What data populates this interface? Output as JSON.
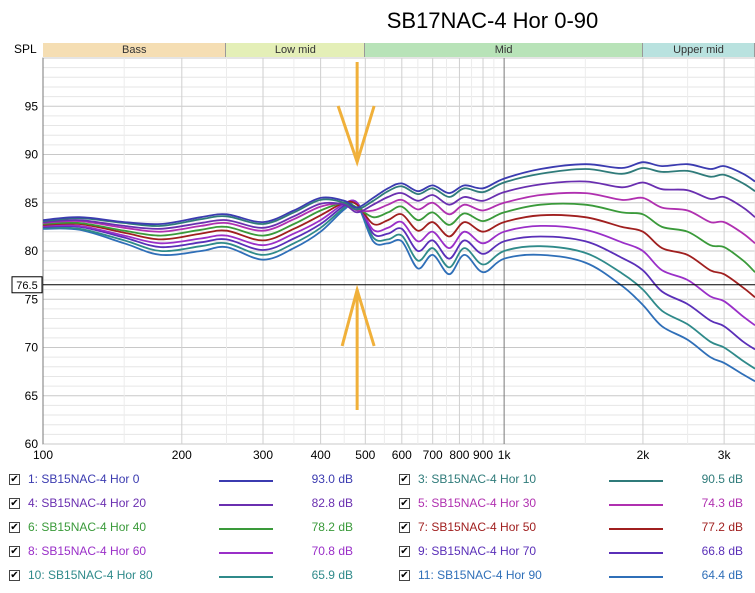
{
  "title": "SB17NAC-4 Hor 0-90",
  "spl_label": "SPL",
  "cursor_value": "76.5",
  "bands": [
    {
      "label": "Bass",
      "color": "#f5deb3",
      "from": 100,
      "to": 250
    },
    {
      "label": "Low mid",
      "color": "#e4efb7",
      "from": 250,
      "to": 500
    },
    {
      "label": "Mid",
      "color": "#b8e3b8",
      "from": 500,
      "to": 2000
    },
    {
      "label": "Upper mid",
      "color": "#b9e2df",
      "from": 2000,
      "to": 4000
    }
  ],
  "legend": [
    {
      "label": "1: SB15NAC-4 Hor 0",
      "value": "93.0 dB",
      "color": "#3b3bb0"
    },
    {
      "label": "3: SB15NAC-4 Hor 10",
      "value": "90.5 dB",
      "color": "#2f7b7a"
    },
    {
      "label": "4: SB15NAC-4 Hor 20",
      "value": "82.8 dB",
      "color": "#6a2fb0"
    },
    {
      "label": "5: SB15NAC-4 Hor 30",
      "value": "74.3 dB",
      "color": "#b030b0"
    },
    {
      "label": "6: SB15NAC-4 Hor 40",
      "value": "78.2 dB",
      "color": "#3a9a3a"
    },
    {
      "label": "7: SB15NAC-4 Hor 50",
      "value": "77.2 dB",
      "color": "#a01f1f"
    },
    {
      "label": "8: SB15NAC-4 Hor 60",
      "value": "70.8 dB",
      "color": "#9a2fc8"
    },
    {
      "label": "9: SB15NAC-4 Hor 70",
      "value": "66.8 dB",
      "color": "#5a2fb8"
    },
    {
      "label": "10: SB15NAC-4 Hor 80",
      "value": "65.9 dB",
      "color": "#2f8a8a"
    },
    {
      "label": "11: SB15NAC-4 Hor 90",
      "value": "64.4 dB",
      "color": "#2f6fb8"
    }
  ],
  "chart_data": {
    "type": "line",
    "title": "SB17NAC-4 Hor 0-90",
    "ylabel": "SPL",
    "xlabel": "",
    "x_scale": "log",
    "xlim": [
      100,
      3500
    ],
    "ylim": [
      60,
      100
    ],
    "grid": true,
    "x_tick_labels": [
      "100",
      "200",
      "300",
      "400",
      "500",
      "600",
      "700",
      "800",
      "900",
      "1k",
      "2k",
      "3k"
    ],
    "x_tick_values": [
      100,
      200,
      300,
      400,
      500,
      600,
      700,
      800,
      900,
      1000,
      2000,
      3000
    ],
    "y_tick_labels": [
      "60",
      "65",
      "70",
      "75",
      "80",
      "85",
      "90",
      "95"
    ],
    "y_tick_values": [
      60,
      65,
      70,
      75,
      80,
      85,
      90,
      95
    ],
    "cursor_y": 76.5,
    "x": [
      100,
      120,
      150,
      180,
      220,
      250,
      300,
      350,
      400,
      450,
      480,
      520,
      560,
      600,
      650,
      700,
      760,
      820,
      900,
      1000,
      1200,
      1500,
      1800,
      2000,
      2200,
      2500,
      2800,
      3000,
      3300,
      3500
    ],
    "series": [
      {
        "name": "1: SB15NAC-4 Hor 0",
        "values": [
          83.2,
          83.5,
          83.0,
          82.8,
          83.5,
          83.8,
          83.0,
          84.2,
          85.5,
          85.2,
          84.5,
          85.5,
          86.5,
          87.0,
          86.2,
          86.8,
          86.0,
          86.8,
          86.5,
          87.5,
          88.5,
          89.0,
          88.6,
          89.2,
          88.8,
          89.0,
          88.5,
          88.8,
          88.0,
          87.2
        ]
      },
      {
        "name": "3: SB15NAC-4 Hor 10",
        "values": [
          83.1,
          83.4,
          82.9,
          82.6,
          83.3,
          83.6,
          82.8,
          84.0,
          85.3,
          85.0,
          84.3,
          85.2,
          86.2,
          86.7,
          85.9,
          86.5,
          85.6,
          86.5,
          86.1,
          87.1,
          88.0,
          88.5,
          88.0,
          88.6,
          88.2,
          88.3,
          87.7,
          87.9,
          87.0,
          86.2
        ]
      },
      {
        "name": "4: SB15NAC-4 Hor 20",
        "values": [
          83.0,
          83.2,
          82.6,
          82.3,
          82.9,
          83.2,
          82.4,
          83.6,
          84.9,
          84.8,
          84.0,
          84.8,
          85.6,
          86.0,
          85.2,
          85.8,
          84.8,
          85.6,
          85.2,
          86.1,
          86.9,
          87.2,
          86.6,
          87.1,
          86.4,
          86.3,
          85.4,
          85.6,
          84.5,
          83.5
        ]
      },
      {
        "name": "5: SB15NAC-4 Hor 30",
        "values": [
          82.9,
          83.1,
          82.4,
          82.0,
          82.6,
          82.9,
          82.1,
          83.3,
          84.6,
          84.9,
          84.2,
          84.2,
          84.8,
          85.3,
          84.3,
          85.0,
          83.8,
          84.8,
          84.2,
          85.0,
          85.8,
          86.0,
          85.3,
          85.5,
          84.5,
          84.2,
          83.0,
          83.0,
          81.8,
          80.8
        ]
      },
      {
        "name": "6: SB15NAC-4 Hor 40",
        "values": [
          82.8,
          82.9,
          82.1,
          81.6,
          82.2,
          82.5,
          81.6,
          82.8,
          84.2,
          85.0,
          84.5,
          83.5,
          84.0,
          84.6,
          83.2,
          84.0,
          82.7,
          83.9,
          83.1,
          84.0,
          84.8,
          84.8,
          84.0,
          83.8,
          82.5,
          82.0,
          80.6,
          80.4,
          79.0,
          77.8
        ]
      },
      {
        "name": "7: SB15NAC-4 Hor 50",
        "values": [
          82.7,
          82.8,
          81.9,
          81.2,
          81.8,
          82.1,
          81.1,
          82.3,
          83.7,
          85.0,
          84.8,
          82.8,
          83.2,
          83.8,
          82.1,
          83.0,
          81.5,
          83.0,
          82.0,
          83.0,
          83.7,
          83.5,
          82.5,
          82.0,
          80.3,
          79.6,
          78.0,
          77.6,
          76.2,
          75.2
        ]
      },
      {
        "name": "8: SB15NAC-4 Hor 60",
        "values": [
          82.6,
          82.6,
          81.6,
          80.8,
          81.3,
          81.6,
          80.6,
          81.8,
          83.2,
          84.9,
          85.0,
          82.2,
          82.4,
          83.0,
          81.0,
          82.0,
          80.3,
          82.0,
          80.8,
          82.0,
          82.6,
          82.2,
          80.9,
          80.0,
          78.0,
          77.0,
          75.3,
          74.8,
          73.2,
          72.3
        ]
      },
      {
        "name": "9: SB15NAC-4 Hor 70",
        "values": [
          82.5,
          82.5,
          81.4,
          80.4,
          80.9,
          81.2,
          80.1,
          81.3,
          82.8,
          84.7,
          85.0,
          81.8,
          81.8,
          82.3,
          80.0,
          81.1,
          79.2,
          81.1,
          79.7,
          81.0,
          81.5,
          81.0,
          79.3,
          78.0,
          75.8,
          74.5,
          72.8,
          72.2,
          70.6,
          69.8
        ]
      },
      {
        "name": "10: SB15NAC-4 Hor 80",
        "values": [
          82.4,
          82.3,
          81.1,
          80.0,
          80.5,
          80.8,
          79.6,
          80.8,
          82.4,
          84.5,
          85.0,
          81.4,
          81.2,
          81.6,
          79.0,
          80.3,
          78.3,
          80.3,
          78.6,
          80.0,
          80.5,
          79.8,
          77.7,
          76.0,
          73.8,
          72.4,
          70.6,
          70.0,
          68.6,
          67.8
        ]
      },
      {
        "name": "11: SB15NAC-4 Hor 90",
        "values": [
          82.3,
          82.2,
          80.8,
          79.6,
          80.0,
          80.4,
          79.1,
          80.3,
          82.0,
          84.3,
          84.8,
          81.0,
          80.8,
          81.0,
          78.2,
          79.6,
          77.6,
          79.6,
          77.8,
          79.2,
          79.6,
          78.8,
          76.4,
          74.4,
          72.2,
          70.8,
          69.0,
          68.4,
          67.2,
          66.5
        ]
      }
    ]
  }
}
